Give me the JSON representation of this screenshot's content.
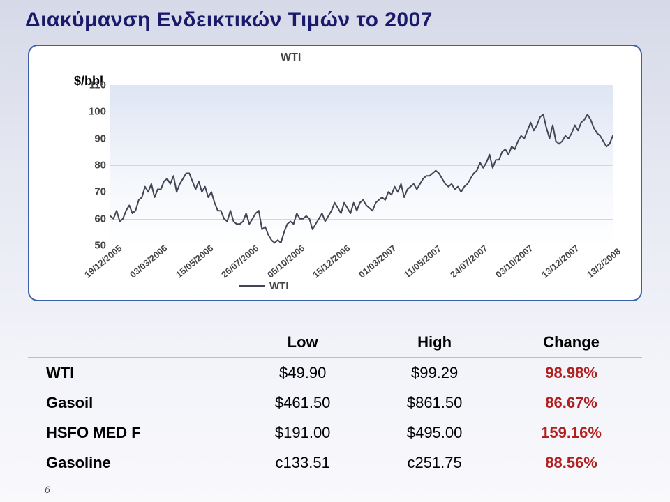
{
  "title": "Διακύμανση Ενδεικτικών Τιμών το 2007",
  "footnote": "6",
  "chart": {
    "type": "line",
    "title_label": "WTI",
    "ylabel": "$/bbl",
    "ylim": [
      50,
      110
    ],
    "ytick_step": 10,
    "yticks": [
      "110",
      "100",
      "90",
      "80",
      "70",
      "60",
      "50"
    ],
    "xlabels": [
      "19/12/2005",
      "03/03/2006",
      "15/05/2006",
      "26/07/2006",
      "05/10/2006",
      "15/12/2006",
      "01/03/2007",
      "11/05/2007",
      "24/07/2007",
      "03/10/2007",
      "13/12/2007",
      "13/2/2008"
    ],
    "plot_bg_top": "#dee5f4",
    "plot_bg_bottom": "#ffffff",
    "grid_color": "#d2d6e4",
    "background_color": "#ffffff",
    "border_color": "#3b5fa8",
    "line_color": "#444455",
    "line_width": 2,
    "legend": {
      "label": "WTI"
    },
    "series": {
      "name": "WTI",
      "values": [
        61,
        60,
        63,
        59,
        60,
        63,
        65,
        62,
        63,
        67,
        68,
        72,
        70,
        73,
        68,
        71,
        71,
        74,
        75,
        73,
        76,
        70,
        73,
        75,
        77,
        77,
        74,
        71,
        74,
        70,
        72,
        68,
        70,
        66,
        63,
        63,
        60,
        59,
        63,
        59,
        58,
        58,
        59,
        62,
        58,
        60,
        62,
        63,
        56,
        57,
        54,
        52,
        51,
        52,
        51,
        55,
        58,
        59,
        58,
        62,
        60,
        60,
        61,
        60,
        56,
        58,
        60,
        62,
        59,
        61,
        63,
        66,
        64,
        62,
        66,
        64,
        62,
        66,
        63,
        66,
        67,
        65,
        64,
        63,
        66,
        67,
        68,
        67,
        70,
        69,
        72,
        70,
        73,
        68,
        71,
        72,
        73,
        71,
        73,
        75,
        76,
        76,
        77,
        78,
        77,
        75,
        73,
        72,
        73,
        71,
        72,
        70,
        72,
        73,
        75,
        77,
        78,
        81,
        79,
        81,
        84,
        79,
        82,
        82,
        85,
        86,
        84,
        87,
        86,
        89,
        91,
        90,
        93,
        96,
        93,
        95,
        98,
        99,
        94,
        90,
        95,
        89,
        88,
        89,
        91,
        90,
        92,
        95,
        93,
        96,
        97,
        99,
        97,
        94,
        92,
        91,
        89,
        87,
        88,
        91
      ]
    }
  },
  "table": {
    "columns": [
      "Low",
      "High",
      "Change"
    ],
    "change_color": "#b02020",
    "rows": [
      {
        "name": "WTI",
        "low": "$49.90",
        "high": "$99.29",
        "change": "98.98%"
      },
      {
        "name": "Gasoil",
        "low": "$461.50",
        "high": "$861.50",
        "change": "86.67%"
      },
      {
        "name": "HSFO MED F",
        "low": "$191.00",
        "high": "$495.00",
        "change": "159.16%"
      },
      {
        "name": "Gasoline",
        "low": "c133.51",
        "high": "c251.75",
        "change": "88.56%"
      }
    ]
  }
}
